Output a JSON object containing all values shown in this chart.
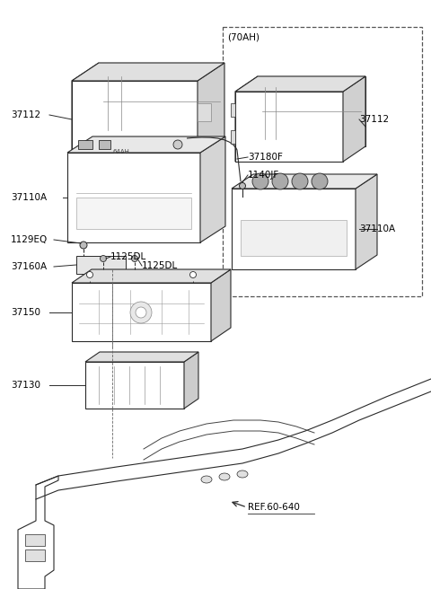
{
  "background_color": "#ffffff",
  "line_color": "#2a2a2a",
  "label_color": "#000000",
  "label_font_size": 7.5,
  "bold_font_size": 7.5,
  "alt_label": "(70AH)",
  "ref_label": "REF.60-640",
  "parts": [
    "37112",
    "37110A",
    "37180F",
    "1140JF",
    "1129EQ",
    "37160A",
    "1125DL",
    "37150",
    "37130"
  ]
}
